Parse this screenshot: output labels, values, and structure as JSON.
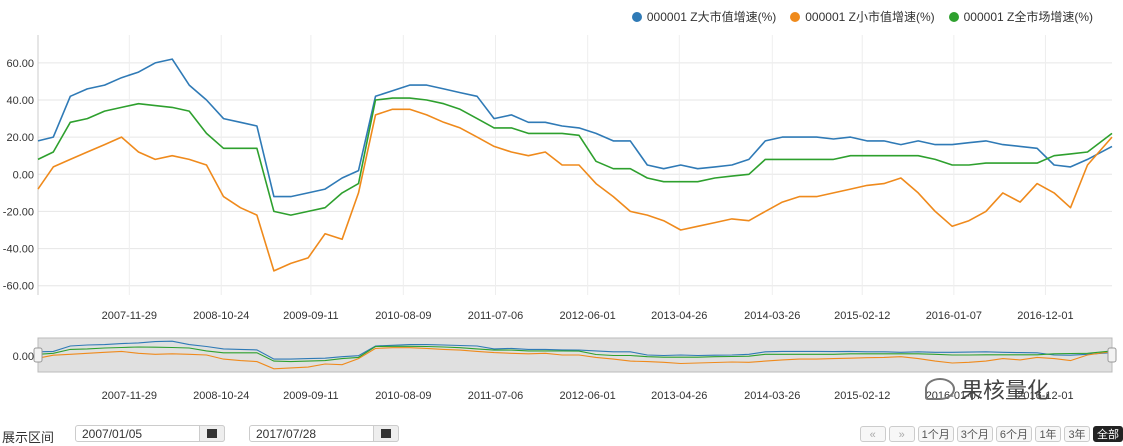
{
  "chart_data": {
    "type": "line",
    "title": "",
    "xlabel": "",
    "ylabel": "",
    "ylim": [
      -65,
      75
    ],
    "date_range": [
      "2007/01/05",
      "2017/07/28"
    ],
    "grid": true,
    "legend_position": "top-right",
    "y_ticks": [
      "60.00",
      "40.00",
      "20.00",
      "0.00",
      "-20.00",
      "-40.00",
      "-60.00"
    ],
    "x_ticks": [
      "2007-11-29",
      "2008-10-24",
      "2009-09-11",
      "2010-08-09",
      "2011-07-06",
      "2012-06-01",
      "2013-04-26",
      "2014-03-26",
      "2015-02-12",
      "2016-01-07",
      "2016-12-01"
    ],
    "navigator_y_tick": "0.00",
    "series": [
      {
        "name": "000001 Z大市值增速(%)",
        "color": "#2f7ab6",
        "x": [
          "2007-01-05",
          "2007-03-01",
          "2007-05-01",
          "2007-07-01",
          "2007-09-01",
          "2007-11-01",
          "2008-01-01",
          "2008-03-01",
          "2008-05-01",
          "2008-07-01",
          "2008-09-01",
          "2008-11-01",
          "2009-01-01",
          "2009-03-01",
          "2009-05-01",
          "2009-07-01",
          "2009-09-01",
          "2009-11-01",
          "2010-01-01",
          "2010-03-01",
          "2010-05-01",
          "2010-07-01",
          "2010-09-01",
          "2010-11-01",
          "2011-01-01",
          "2011-03-01",
          "2011-05-01",
          "2011-07-01",
          "2011-09-01",
          "2011-11-01",
          "2012-01-01",
          "2012-03-01",
          "2012-05-01",
          "2012-07-01",
          "2012-09-01",
          "2012-11-01",
          "2013-01-01",
          "2013-03-01",
          "2013-05-01",
          "2013-07-01",
          "2013-09-01",
          "2013-11-01",
          "2014-01-01",
          "2014-03-01",
          "2014-05-01",
          "2014-07-01",
          "2014-09-01",
          "2014-11-01",
          "2015-01-01",
          "2015-03-01",
          "2015-05-01",
          "2015-07-01",
          "2015-09-01",
          "2015-11-01",
          "2016-01-01",
          "2016-03-01",
          "2016-05-01",
          "2016-07-01",
          "2016-09-01",
          "2016-11-01",
          "2017-01-01",
          "2017-03-01",
          "2017-05-01",
          "2017-07-28"
        ],
        "values": [
          18,
          20,
          42,
          46,
          48,
          52,
          55,
          60,
          62,
          48,
          40,
          30,
          28,
          26,
          -12,
          -12,
          -10,
          -8,
          -2,
          2,
          42,
          45,
          48,
          48,
          46,
          44,
          42,
          30,
          32,
          28,
          28,
          26,
          25,
          22,
          18,
          18,
          5,
          3,
          5,
          3,
          4,
          5,
          8,
          18,
          20,
          20,
          20,
          19,
          20,
          18,
          18,
          16,
          18,
          16,
          16,
          17,
          18,
          16,
          15,
          14,
          5,
          4,
          8,
          15
        ]
      },
      {
        "name": "000001 Z小市值增速(%)",
        "color": "#ef8a1c",
        "x": [
          "2007-01-05",
          "2007-03-01",
          "2007-05-01",
          "2007-07-01",
          "2007-09-01",
          "2007-11-01",
          "2008-01-01",
          "2008-03-01",
          "2008-05-01",
          "2008-07-01",
          "2008-09-01",
          "2008-11-01",
          "2009-01-01",
          "2009-03-01",
          "2009-05-01",
          "2009-07-01",
          "2009-09-01",
          "2009-11-01",
          "2010-01-01",
          "2010-03-01",
          "2010-05-01",
          "2010-07-01",
          "2010-09-01",
          "2010-11-01",
          "2011-01-01",
          "2011-03-01",
          "2011-05-01",
          "2011-07-01",
          "2011-09-01",
          "2011-11-01",
          "2012-01-01",
          "2012-03-01",
          "2012-05-01",
          "2012-07-01",
          "2012-09-01",
          "2012-11-01",
          "2013-01-01",
          "2013-03-01",
          "2013-05-01",
          "2013-07-01",
          "2013-09-01",
          "2013-11-01",
          "2014-01-01",
          "2014-03-01",
          "2014-05-01",
          "2014-07-01",
          "2014-09-01",
          "2014-11-01",
          "2015-01-01",
          "2015-03-01",
          "2015-05-01",
          "2015-07-01",
          "2015-09-01",
          "2015-11-01",
          "2016-01-01",
          "2016-03-01",
          "2016-05-01",
          "2016-07-01",
          "2016-09-01",
          "2016-11-01",
          "2017-01-01",
          "2017-03-01",
          "2017-05-01",
          "2017-07-28"
        ],
        "values": [
          -8,
          4,
          8,
          12,
          16,
          20,
          12,
          8,
          10,
          8,
          5,
          -12,
          -18,
          -22,
          -52,
          -48,
          -45,
          -32,
          -35,
          -10,
          32,
          35,
          35,
          32,
          28,
          25,
          20,
          15,
          12,
          10,
          12,
          5,
          5,
          -5,
          -12,
          -20,
          -22,
          -25,
          -30,
          -28,
          -26,
          -24,
          -25,
          -20,
          -15,
          -12,
          -12,
          -10,
          -8,
          -6,
          -5,
          -2,
          -10,
          -20,
          -28,
          -25,
          -20,
          -10,
          -15,
          -5,
          -10,
          -18,
          5,
          20
        ]
      },
      {
        "name": "000001 Z全市场增速(%)",
        "color": "#2ea02e",
        "x": [
          "2007-01-05",
          "2007-03-01",
          "2007-05-01",
          "2007-07-01",
          "2007-09-01",
          "2007-11-01",
          "2008-01-01",
          "2008-03-01",
          "2008-05-01",
          "2008-07-01",
          "2008-09-01",
          "2008-11-01",
          "2009-01-01",
          "2009-03-01",
          "2009-05-01",
          "2009-07-01",
          "2009-09-01",
          "2009-11-01",
          "2010-01-01",
          "2010-03-01",
          "2010-05-01",
          "2010-07-01",
          "2010-09-01",
          "2010-11-01",
          "2011-01-01",
          "2011-03-01",
          "2011-05-01",
          "2011-07-01",
          "2011-09-01",
          "2011-11-01",
          "2012-01-01",
          "2012-03-01",
          "2012-05-01",
          "2012-07-01",
          "2012-09-01",
          "2012-11-01",
          "2013-01-01",
          "2013-03-01",
          "2013-05-01",
          "2013-07-01",
          "2013-09-01",
          "2013-11-01",
          "2014-01-01",
          "2014-03-01",
          "2014-05-01",
          "2014-07-01",
          "2014-09-01",
          "2014-11-01",
          "2015-01-01",
          "2015-03-01",
          "2015-05-01",
          "2015-07-01",
          "2015-09-01",
          "2015-11-01",
          "2016-01-01",
          "2016-03-01",
          "2016-05-01",
          "2016-07-01",
          "2016-09-01",
          "2016-11-01",
          "2017-01-01",
          "2017-03-01",
          "2017-05-01",
          "2017-07-28"
        ],
        "values": [
          8,
          12,
          28,
          30,
          34,
          36,
          38,
          37,
          36,
          34,
          22,
          14,
          14,
          14,
          -20,
          -22,
          -20,
          -18,
          -10,
          -5,
          40,
          41,
          41,
          40,
          38,
          35,
          30,
          25,
          25,
          22,
          22,
          22,
          21,
          7,
          3,
          3,
          -2,
          -4,
          -4,
          -4,
          -2,
          -1,
          0,
          8,
          8,
          8,
          8,
          8,
          10,
          10,
          10,
          10,
          10,
          8,
          5,
          5,
          6,
          6,
          6,
          6,
          10,
          11,
          12,
          22
        ]
      }
    ]
  },
  "controls": {
    "label": "展示区间",
    "start_date": "2007/01/05",
    "end_date": "2017/07/28",
    "buttons": [
      "1个月",
      "3个月",
      "6个月",
      "1年",
      "3年",
      "全部"
    ],
    "active_button": "全部"
  },
  "watermark": {
    "text": "果核量化"
  }
}
